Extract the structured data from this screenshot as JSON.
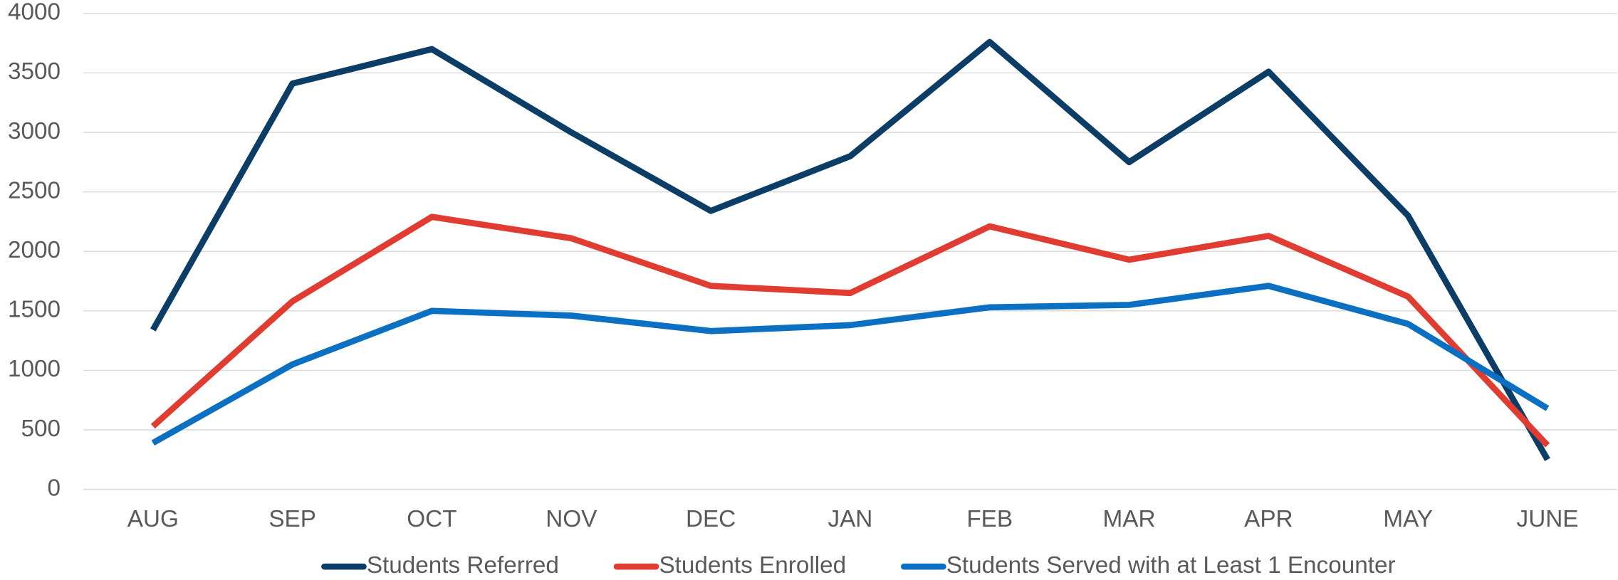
{
  "chart_data": {
    "type": "line",
    "categories": [
      "AUG",
      "SEP",
      "OCT",
      "NOV",
      "DEC",
      "JAN",
      "FEB",
      "MAR",
      "APR",
      "MAY",
      "JUNE"
    ],
    "series": [
      {
        "name": "Students Referred",
        "color": "#0b3d66",
        "values": [
          1340,
          3410,
          3700,
          3000,
          2340,
          2800,
          3760,
          2750,
          3510,
          2300,
          250
        ]
      },
      {
        "name": "Students Enrolled",
        "color": "#e03c31",
        "values": [
          530,
          1580,
          2290,
          2110,
          1710,
          1650,
          2210,
          1930,
          2130,
          1620,
          370
        ]
      },
      {
        "name": "Students Served with at Least 1 Encounter",
        "color": "#0b6fc2",
        "values": [
          390,
          1050,
          1500,
          1460,
          1330,
          1380,
          1530,
          1550,
          1710,
          1390,
          680
        ]
      }
    ],
    "ylim": [
      0,
      4000
    ],
    "yticks": [
      0,
      500,
      1000,
      1500,
      2000,
      2500,
      3000,
      3500,
      4000
    ],
    "grid": true,
    "legend": "bottom"
  }
}
